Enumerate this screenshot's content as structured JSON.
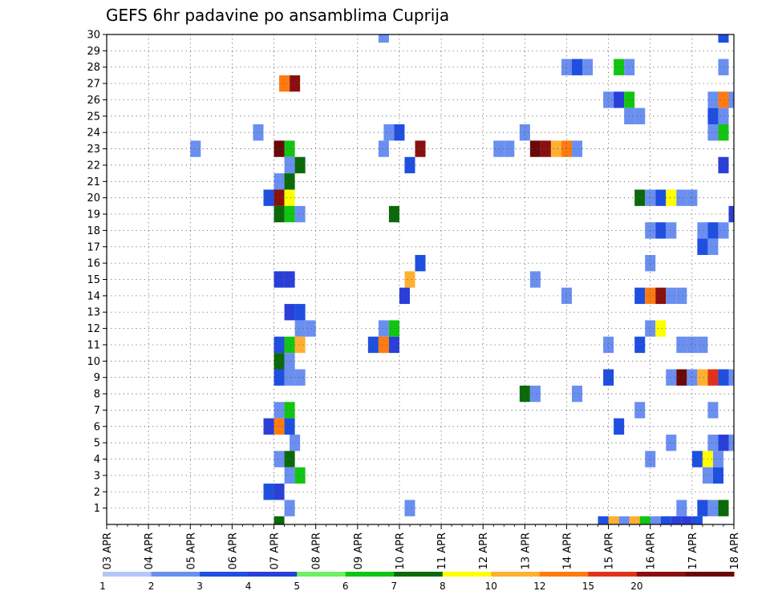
{
  "chart_data": {
    "type": "heatmap",
    "title": "GEFS 6hr padavine po ansamblima Cuprija",
    "xlabel": "",
    "ylabel": "",
    "x_tick_labels": [
      "03 APR",
      "04 APR",
      "05 APR",
      "06 APR",
      "07 APR",
      "08 APR",
      "09 APR",
      "10 APR",
      "11 APR",
      "12 APR",
      "13 APR",
      "14 APR",
      "15 APR",
      "16 APR",
      "17 APR",
      "18 APR"
    ],
    "y_tick_labels": [
      "1",
      "2",
      "3",
      "4",
      "5",
      "6",
      "7",
      "8",
      "9",
      "10",
      "11",
      "12",
      "13",
      "14",
      "15",
      "16",
      "17",
      "18",
      "19",
      "20",
      "21",
      "22",
      "23",
      "24",
      "25",
      "26",
      "27",
      "28",
      "29",
      "30"
    ],
    "x_unit": "6-hour step (0 = 03 APR 00Z, 60 = 18 APR 00Z)",
    "ylim": [
      0,
      30
    ],
    "grid": true,
    "colorbar": {
      "labels": [
        "1",
        "2",
        "3",
        "4",
        "5",
        "6",
        "7",
        "8",
        "10",
        "12",
        "15",
        "20"
      ],
      "colors": [
        "#b3c7f5",
        "#6a8ff0",
        "#1f4fe0",
        "#2a3fd8",
        "#6ef060",
        "#12c512",
        "#0a6a0a",
        "#ffff00",
        "#ffb030",
        "#ff7a10",
        "#e0321a",
        "#8a1010",
        "#6a0808"
      ]
    },
    "cells": [
      {
        "m": 30,
        "x": [
          [
            26.5,
            1
          ]
        ],
        "c": [
          [
            59,
            2
          ]
        ]
      },
      {
        "m": 28,
        "x": [
          [
            44,
            1
          ],
          [
            45,
            2
          ],
          [
            46,
            1
          ],
          [
            49,
            5
          ],
          [
            50,
            1
          ],
          [
            59,
            1
          ]
        ]
      },
      {
        "m": 27,
        "x": [
          [
            17,
            9
          ],
          [
            18,
            11
          ]
        ]
      },
      {
        "m": 26,
        "x": [
          [
            48,
            1
          ],
          [
            49,
            3
          ],
          [
            50,
            5
          ],
          [
            58,
            1
          ],
          [
            59,
            9
          ],
          [
            60,
            1
          ]
        ]
      },
      {
        "m": 25,
        "x": [
          [
            50,
            1
          ],
          [
            51,
            1
          ],
          [
            58,
            2
          ],
          [
            59,
            1
          ]
        ]
      },
      {
        "m": 24,
        "x": [
          [
            14.5,
            1
          ],
          [
            27,
            1
          ],
          [
            28,
            2
          ],
          [
            40,
            1
          ],
          [
            58,
            1
          ],
          [
            59,
            5
          ]
        ]
      },
      {
        "m": 23,
        "x": [
          [
            8.5,
            1
          ],
          [
            16.5,
            12
          ],
          [
            17.5,
            5
          ],
          [
            26.5,
            1
          ],
          [
            30,
            11
          ],
          [
            37.5,
            1
          ],
          [
            38.5,
            1
          ],
          [
            41,
            12
          ],
          [
            42,
            11
          ],
          [
            43,
            8
          ],
          [
            44,
            9
          ],
          [
            45,
            1
          ]
        ]
      },
      {
        "m": 22,
        "x": [
          [
            17.5,
            1
          ],
          [
            18.5,
            6
          ],
          [
            29,
            2
          ],
          [
            59,
            3
          ]
        ]
      },
      {
        "m": 21,
        "x": [
          [
            16.5,
            1
          ],
          [
            17.5,
            6
          ]
        ]
      },
      {
        "m": 20,
        "x": [
          [
            15.5,
            2
          ],
          [
            16.5,
            11
          ],
          [
            17.5,
            7
          ],
          [
            51,
            6
          ],
          [
            52,
            1
          ],
          [
            53,
            2
          ],
          [
            54,
            7
          ],
          [
            55,
            1
          ],
          [
            56,
            1
          ]
        ]
      },
      {
        "m": 19,
        "x": [
          [
            16.5,
            6
          ],
          [
            17.5,
            5
          ],
          [
            18.5,
            1
          ],
          [
            27.5,
            6
          ],
          [
            60,
            3
          ]
        ]
      },
      {
        "m": 18,
        "x": [
          [
            52,
            1
          ],
          [
            53,
            2
          ],
          [
            54,
            1
          ],
          [
            57,
            1
          ],
          [
            58,
            2
          ],
          [
            59,
            1
          ]
        ]
      },
      {
        "m": 17,
        "x": [
          [
            57,
            2
          ],
          [
            58,
            1
          ]
        ]
      },
      {
        "m": 16,
        "x": [
          [
            30,
            2
          ],
          [
            52,
            1
          ]
        ]
      },
      {
        "m": 15,
        "x": [
          [
            16.5,
            3
          ],
          [
            17.5,
            3
          ],
          [
            29,
            8
          ],
          [
            41,
            1
          ]
        ]
      },
      {
        "m": 14,
        "x": [
          [
            28.5,
            3
          ],
          [
            44,
            1
          ],
          [
            51,
            2
          ],
          [
            52,
            9
          ],
          [
            53,
            11
          ],
          [
            54,
            1
          ],
          [
            55,
            1
          ]
        ]
      },
      {
        "m": 13,
        "x": [
          [
            17.5,
            3
          ],
          [
            18.5,
            2
          ]
        ]
      },
      {
        "m": 12,
        "x": [
          [
            18.5,
            1
          ],
          [
            19.5,
            1
          ],
          [
            26.5,
            1
          ],
          [
            27.5,
            5
          ],
          [
            52,
            1
          ],
          [
            53,
            7
          ]
        ]
      },
      {
        "m": 11,
        "x": [
          [
            16.5,
            2
          ],
          [
            17.5,
            5
          ],
          [
            18.5,
            8
          ],
          [
            25.5,
            2
          ],
          [
            26.5,
            9
          ],
          [
            27.5,
            3
          ],
          [
            48,
            1
          ],
          [
            51,
            2
          ],
          [
            55,
            1
          ],
          [
            56,
            1
          ],
          [
            57,
            1
          ]
        ]
      },
      {
        "m": 10,
        "x": [
          [
            16.5,
            6
          ],
          [
            17.5,
            1
          ]
        ]
      },
      {
        "m": 9,
        "x": [
          [
            16.5,
            2
          ],
          [
            17.5,
            1
          ],
          [
            18.5,
            1
          ],
          [
            48,
            2
          ],
          [
            54,
            1
          ],
          [
            55,
            12
          ],
          [
            56,
            1
          ],
          [
            57,
            8
          ],
          [
            58,
            10
          ],
          [
            59,
            2
          ],
          [
            60,
            1
          ]
        ]
      },
      {
        "m": 8,
        "x": [
          [
            40,
            6
          ],
          [
            41,
            1
          ],
          [
            45,
            1
          ]
        ]
      },
      {
        "m": 7,
        "x": [
          [
            16.5,
            1
          ],
          [
            17.5,
            5
          ],
          [
            51,
            1
          ],
          [
            58,
            1
          ]
        ]
      },
      {
        "m": 6,
        "x": [
          [
            15.5,
            3
          ],
          [
            16.5,
            9
          ],
          [
            17.5,
            2
          ],
          [
            49,
            2
          ]
        ]
      },
      {
        "m": 5,
        "x": [
          [
            18,
            1
          ],
          [
            54,
            1
          ],
          [
            58,
            1
          ],
          [
            59,
            3
          ],
          [
            60,
            1
          ]
        ]
      },
      {
        "m": 4,
        "x": [
          [
            16.5,
            1
          ],
          [
            17.5,
            6
          ],
          [
            52,
            1
          ],
          [
            56.5,
            2
          ],
          [
            57.5,
            7
          ],
          [
            58.5,
            1
          ]
        ]
      },
      {
        "m": 3,
        "x": [
          [
            17.5,
            1
          ],
          [
            18.5,
            5
          ],
          [
            57.5,
            1
          ],
          [
            58.5,
            2
          ]
        ]
      },
      {
        "m": 2,
        "x": [
          [
            15.5,
            2
          ],
          [
            16.5,
            3
          ]
        ]
      },
      {
        "m": 1,
        "x": [
          [
            17.5,
            1
          ],
          [
            29,
            1
          ],
          [
            55,
            1
          ],
          [
            57,
            2
          ],
          [
            58,
            1
          ],
          [
            59,
            6
          ]
        ]
      },
      {
        "m": 0,
        "x": [
          [
            16.5,
            6
          ],
          [
            47.5,
            2
          ],
          [
            48.5,
            8
          ],
          [
            49.5,
            1
          ],
          [
            50.5,
            8
          ],
          [
            51.5,
            5
          ],
          [
            52.5,
            1
          ],
          [
            53.5,
            2
          ],
          [
            54.5,
            3
          ],
          [
            55.5,
            3
          ],
          [
            56.5,
            2
          ]
        ]
      }
    ]
  }
}
